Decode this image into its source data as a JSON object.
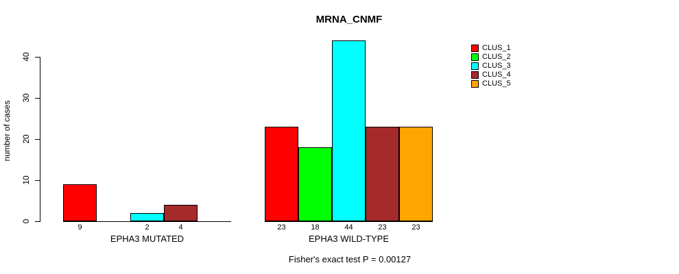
{
  "title": "MRNA_CNMF",
  "chart_data": {
    "type": "bar",
    "title": "MRNA_CNMF",
    "ylabel": "number of cases",
    "xlabel": "",
    "yticks": [
      0,
      10,
      20,
      30,
      40
    ],
    "ylim": [
      0,
      44
    ],
    "grid": false,
    "legend_position": "top-right",
    "legend": [
      {
        "name": "CLUS_1",
        "color": "#FF0000"
      },
      {
        "name": "CLUS_2",
        "color": "#00FF00"
      },
      {
        "name": "CLUS_3",
        "color": "#00FFFF"
      },
      {
        "name": "CLUS_4",
        "color": "#A52A2A"
      },
      {
        "name": "CLUS_5",
        "color": "#FFA500"
      }
    ],
    "groups": [
      {
        "label": "EPHA3 MUTATED",
        "values": [
          9,
          0,
          2,
          4,
          0
        ]
      },
      {
        "label": "EPHA3 WILD-TYPE",
        "values": [
          23,
          18,
          44,
          23,
          23
        ]
      }
    ],
    "zero_bars_rendered_as_flat_line": true,
    "annotation": "Fisher's exact test P = 0.00127"
  }
}
